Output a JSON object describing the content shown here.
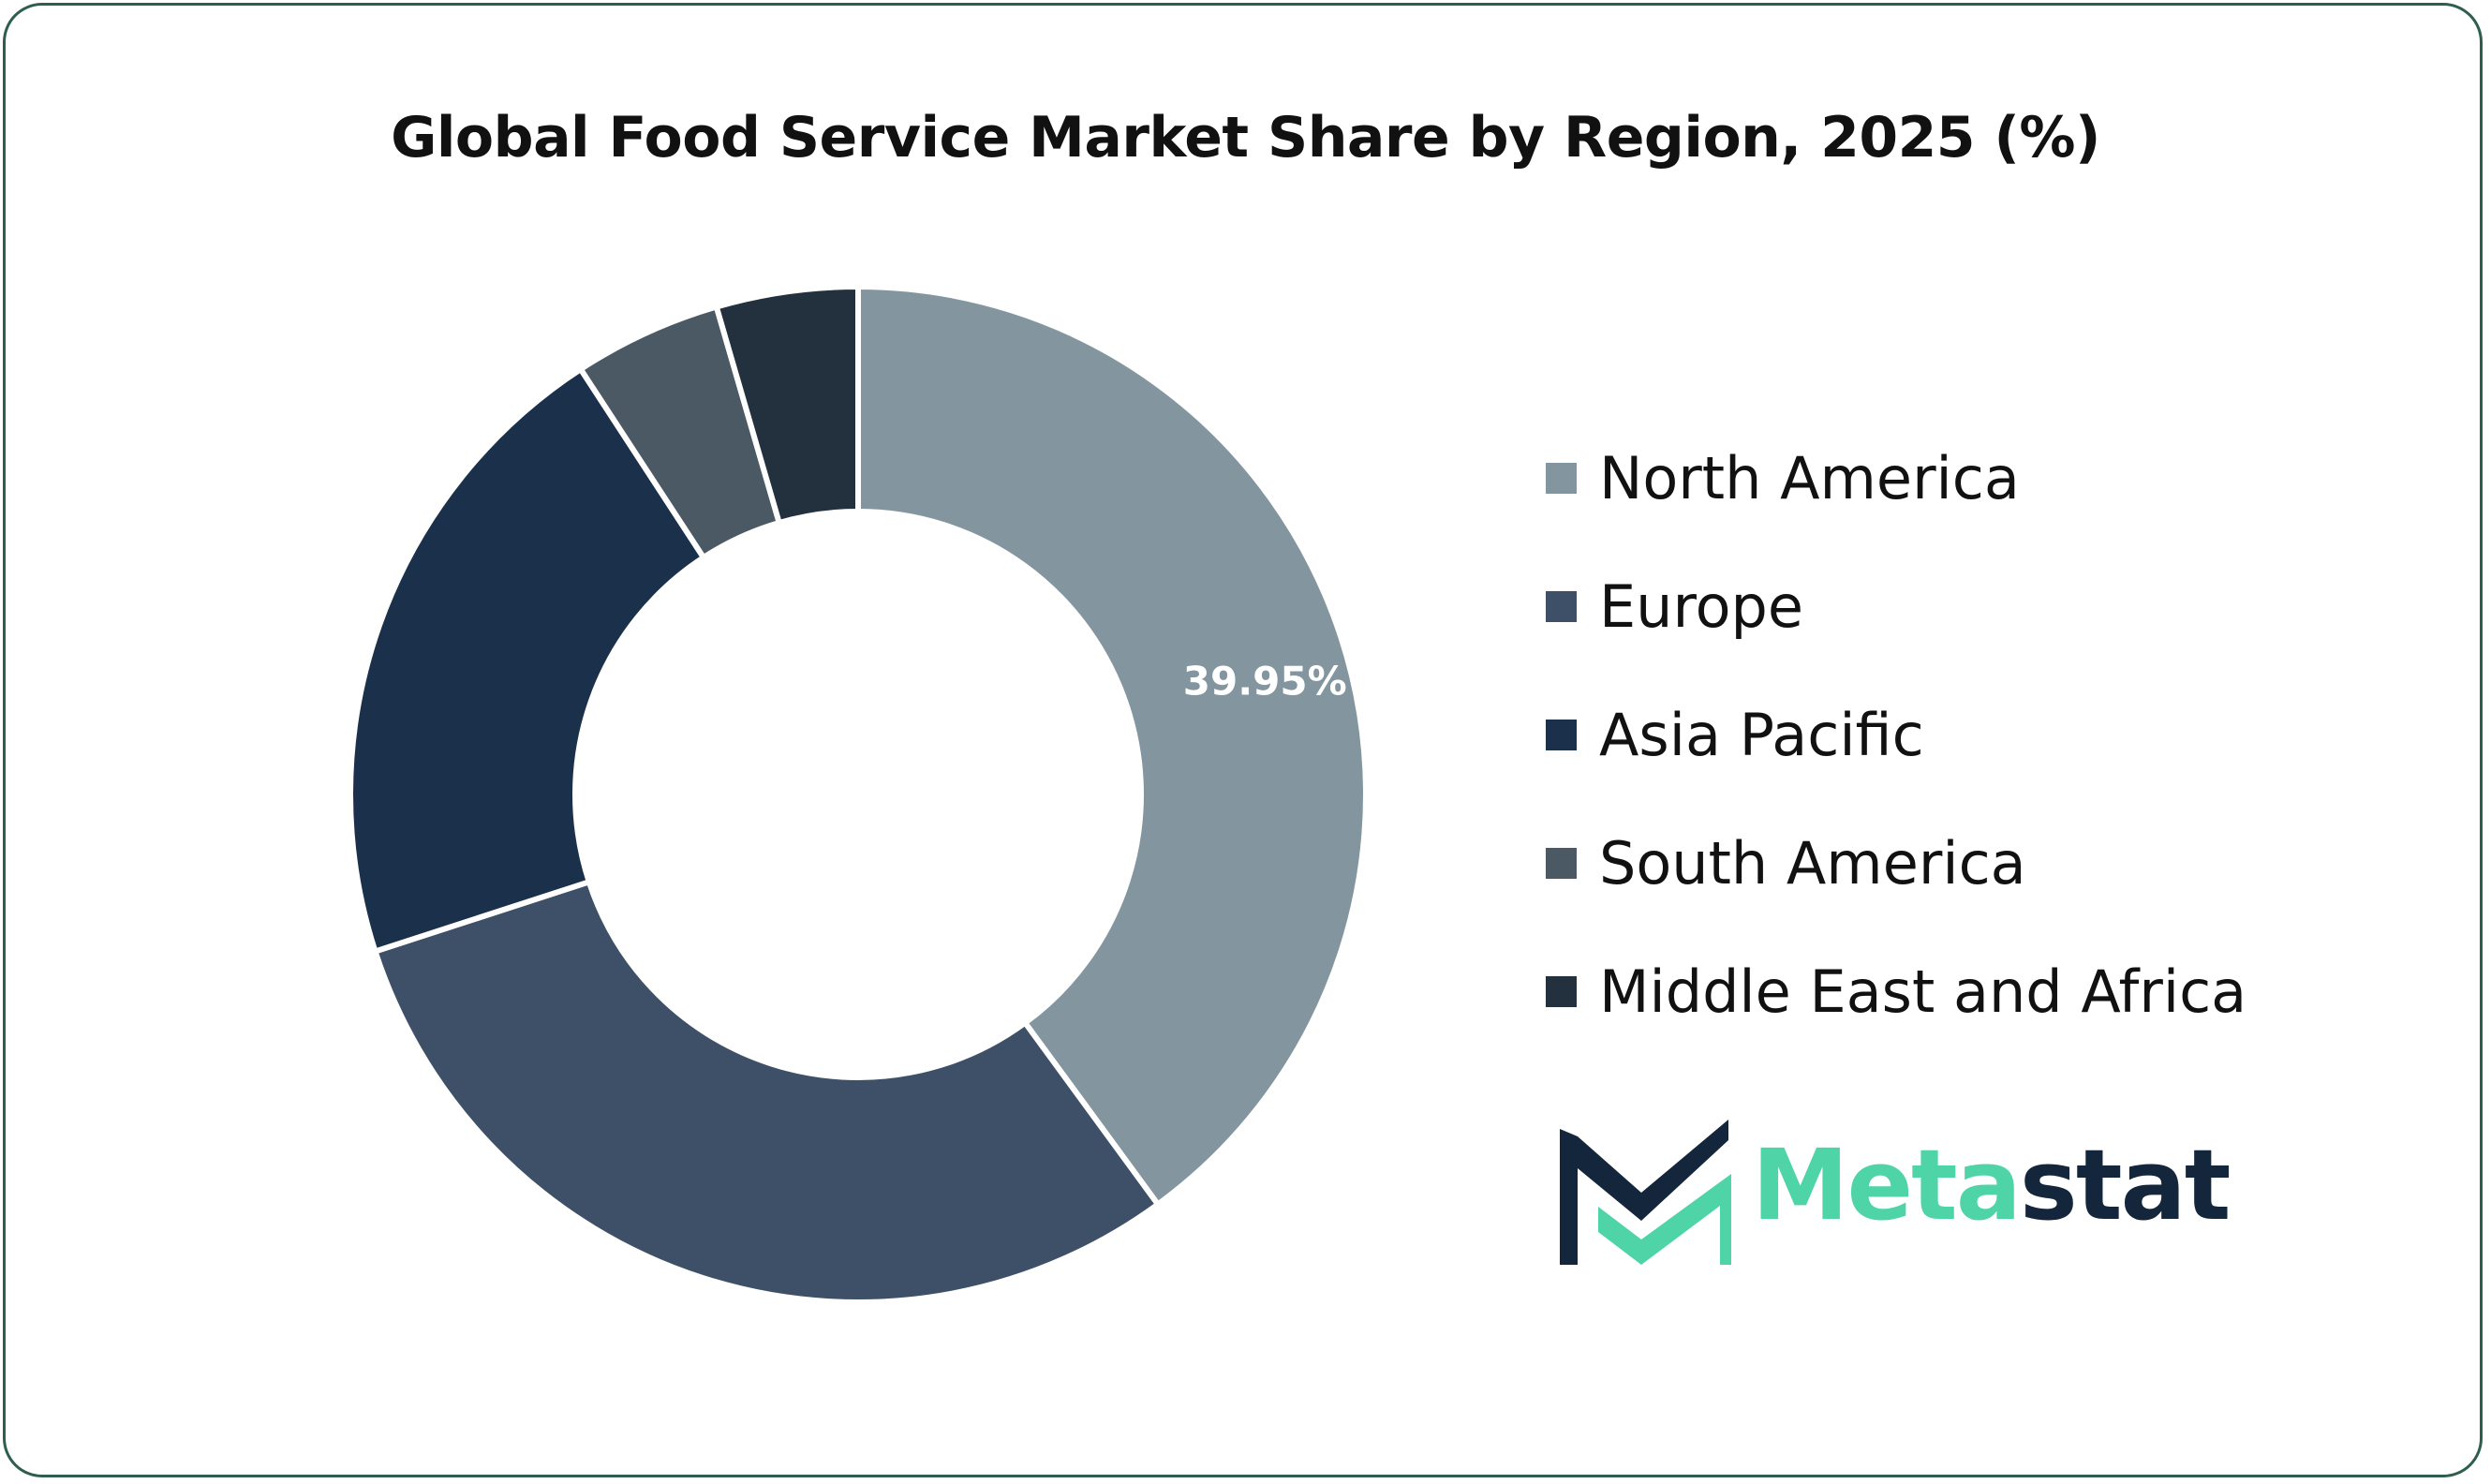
{
  "chart_data": {
    "type": "pie",
    "title": "Global Food Service Market Share by Region, 2025 (%)",
    "categories": [
      "North America",
      "Europe",
      "Asia Pacific",
      "South America",
      "Middle East and Africa"
    ],
    "values": [
      39.95,
      30.05,
      20.8,
      4.7,
      4.5
    ],
    "colors": [
      "#83969f",
      "#3d5067",
      "#1b314b",
      "#4a5964",
      "#23313f"
    ],
    "data_labels": [
      "39.95%",
      "",
      "",
      "",
      ""
    ],
    "legend_position": "right",
    "style": "donut"
  },
  "brand": {
    "logo_text_accent": "Meta",
    "logo_text_dark": "stat",
    "accent_color": "#4ed4a6",
    "dark_color": "#13263b",
    "border_color": "#2e5e4e"
  }
}
